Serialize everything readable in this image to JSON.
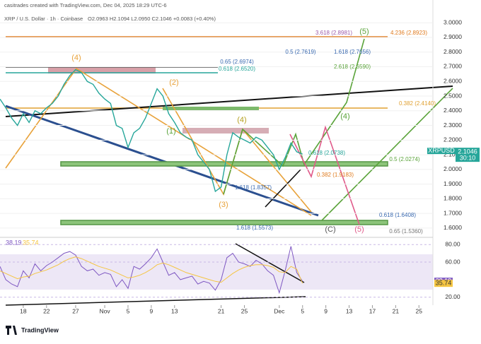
{
  "header": {
    "credit": "casitrades created with TradingView.com, Dec 04, 2025 18:29 UTC-6",
    "symbol": "XRP / U.S. Dollar · 1h · Coinbase",
    "ohlc": "O2.0963 H2.1094 L2.0950 C2.1046 +0.0083 (+0.40%)"
  },
  "chart_data": [
    {
      "type": "line",
      "x": [
        14,
        15,
        16,
        17,
        18,
        19,
        20,
        21,
        22,
        23,
        24,
        25,
        26,
        27,
        28,
        29,
        30,
        31,
        32,
        33,
        34,
        35,
        36,
        37,
        38,
        39,
        40,
        41,
        42,
        43,
        44,
        45,
        46,
        47,
        48,
        49,
        50,
        51,
        52,
        53,
        54,
        55,
        56,
        57,
        58,
        59,
        60,
        61,
        62,
        63,
        64,
        65,
        66
      ],
      "series": [
        {
          "name": "XRPUSD",
          "color": "#26a69a",
          "values": [
            2.48,
            2.42,
            2.35,
            2.3,
            2.38,
            2.32,
            2.4,
            2.38,
            2.42,
            2.45,
            2.5,
            2.58,
            2.64,
            2.68,
            2.66,
            2.6,
            2.58,
            2.52,
            2.48,
            2.45,
            2.3,
            2.28,
            2.15,
            2.25,
            2.28,
            2.35,
            2.45,
            2.55,
            2.5,
            2.38,
            2.32,
            2.25,
            2.22,
            2.2,
            2.1,
            2.05,
            2.0,
            1.85,
            1.88,
            2.1,
            2.25,
            2.22,
            2.2,
            2.18,
            2.22,
            2.2,
            2.15,
            2.1,
            2.0,
            2.08,
            2.18,
            2.12,
            2.1046
          ]
        }
      ],
      "xlim": [
        14,
        88.4
      ],
      "xticks": [
        18,
        22,
        27,
        {
          "value": 32,
          "label": "Nov"
        },
        {
          "value": 36,
          "label": "5"
        },
        {
          "value": 40,
          "label": "9"
        },
        {
          "value": 44,
          "label": "13"
        },
        {
          "value": 52,
          "label": "21"
        },
        {
          "value": 56,
          "label": "25"
        },
        {
          "value": 62,
          "label": "Dec"
        },
        {
          "value": 66,
          "label": "5"
        },
        {
          "value": 70,
          "label": "9"
        },
        {
          "value": 74,
          "label": "13"
        },
        {
          "value": 78,
          "label": "17"
        },
        {
          "value": 82,
          "label": "21"
        },
        {
          "value": 86,
          "label": "25"
        }
      ],
      "ylim": [
        1.537,
        3.155
      ],
      "yticks": [
        {
          "value": 1.6,
          "label": "1.6000"
        },
        {
          "value": 1.7,
          "label": "1.7000"
        },
        {
          "value": 1.8,
          "label": "1.8000"
        },
        {
          "value": 1.9,
          "label": "1.9000"
        },
        {
          "value": 2.0,
          "label": "2.0000"
        },
        {
          "value": 2.1,
          "label": "2.1000"
        },
        {
          "value": 2.2,
          "label": "2.2000"
        },
        {
          "value": 2.3,
          "label": "2.3000"
        },
        {
          "value": 2.4,
          "label": "2.4000"
        },
        {
          "value": 2.5,
          "label": "2.5000"
        },
        {
          "value": 2.6,
          "label": "2.6000"
        },
        {
          "value": 2.7,
          "label": "2.7000"
        },
        {
          "value": 2.8,
          "label": "2.8000"
        },
        {
          "value": 2.9,
          "label": "2.9000"
        },
        {
          "value": 3.0,
          "label": "3.0000"
        }
      ]
    },
    {
      "type": "line",
      "x": [
        14,
        15,
        16,
        17,
        18,
        19,
        20,
        21,
        22,
        23,
        24,
        25,
        26,
        27,
        28,
        29,
        30,
        31,
        32,
        33,
        34,
        35,
        36,
        37,
        38,
        39,
        40,
        41,
        42,
        43,
        44,
        45,
        46,
        47,
        48,
        49,
        50,
        51,
        52,
        53,
        54,
        55,
        56,
        57,
        58,
        59,
        60,
        61,
        62,
        63,
        64,
        65,
        66
      ],
      "series": [
        {
          "color": "#7e57c2",
          "values": [
            55,
            40,
            35,
            32,
            50,
            42,
            58,
            50,
            56,
            60,
            65,
            70,
            72,
            68,
            55,
            50,
            52,
            45,
            48,
            46,
            32,
            40,
            30,
            55,
            52,
            58,
            65,
            75,
            60,
            45,
            48,
            40,
            42,
            44,
            35,
            38,
            36,
            28,
            40,
            65,
            70,
            60,
            58,
            55,
            62,
            58,
            50,
            45,
            25,
            50,
            78,
            48,
            38.19
          ]
        },
        {
          "color": "#f5c542",
          "values": [
            50,
            47,
            44,
            41,
            43,
            44,
            47,
            49,
            51,
            54,
            57,
            61,
            64,
            66,
            64,
            61,
            58,
            55,
            53,
            51,
            48,
            45,
            42,
            43,
            45,
            48,
            52,
            57,
            59,
            57,
            54,
            51,
            48,
            46,
            44,
            42,
            40,
            38,
            37,
            42,
            47,
            51,
            54,
            56,
            57,
            57,
            56,
            54,
            49,
            48,
            55,
            52,
            35.74
          ]
        }
      ],
      "value_labels": [
        "38.19",
        "35.74"
      ],
      "xlim": [
        14,
        88.4
      ],
      "ylim": [
        10.9,
        86.6
      ],
      "yticks": [
        {
          "value": 20,
          "label": "20.00"
        },
        {
          "value": 60,
          "label": "60.00"
        },
        {
          "value": 80,
          "label": "80.00"
        }
      ]
    }
  ],
  "annotations": [
    "(4)",
    "(5)",
    "(2)",
    "(3)",
    "(4)",
    "(4)",
    "(1)",
    "(C)",
    "(5)",
    "3.618 (2.8981)",
    "4.236 (2.8923)",
    "0.65 (2.6974)",
    "0.618 (2.6520)",
    "0.5 (2.7619)",
    "1.618 (2.7656)",
    "2.618 (2.6590)",
    "0.382 (2.4140)",
    "0.5 (2.0274)",
    "0.618 (2.0738)",
    "0.382 (1.9183)",
    "1.618 (1.8357)",
    "0.618 (1.6408)",
    "1.618 (1.5573)",
    "0.65 (1.5360)"
  ],
  "price_tag": {
    "price": "2.1046",
    "countdown": "30:10"
  },
  "logo": "TradingView"
}
